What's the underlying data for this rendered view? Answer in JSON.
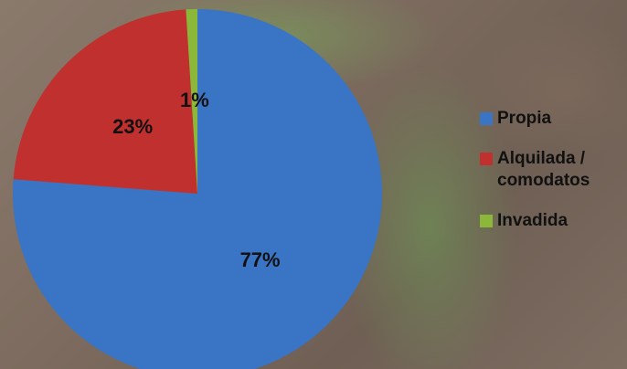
{
  "chart_data": {
    "type": "pie",
    "categories": [
      "Propia",
      "Alquilada / comodatos",
      "Invadida"
    ],
    "values": [
      77,
      23,
      1
    ],
    "value_labels": [
      "77%",
      "23%",
      "1%"
    ],
    "colors": [
      "#3a74c4",
      "#c0302e",
      "#8cb83a"
    ],
    "legend": "right"
  }
}
